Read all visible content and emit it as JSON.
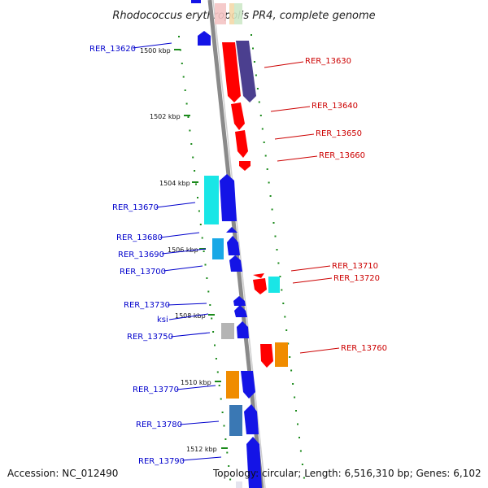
{
  "title": "Rhodococcus erythropolis PR4, complete genome",
  "footer": {
    "accession": "Accession: NC_012490",
    "topology": "Topology: circular; Length: 6,516,310 bp; Genes: 6,102"
  },
  "colors": {
    "backbone": "#8a8a8a",
    "tick": "#1b8a1b",
    "left_label": "#0000cc",
    "right_label": "#cc0000"
  },
  "kbp_ticks": [
    "1500 kbp",
    "1502 kbp",
    "1504 kbp",
    "1506 kbp",
    "1508 kbp",
    "1510 kbp",
    "1512 kbp"
  ],
  "genes_left": [
    "RER_13620",
    "RER_13670",
    "RER_13680",
    "RER_13690",
    "RER_13700",
    "RER_13730",
    "ksi",
    "RER_13750",
    "RER_13770",
    "RER_13780",
    "RER_13790"
  ],
  "genes_right": [
    "RER_13630",
    "RER_13640",
    "RER_13650",
    "RER_13660",
    "RER_13710",
    "RER_13720",
    "RER_13760"
  ]
}
